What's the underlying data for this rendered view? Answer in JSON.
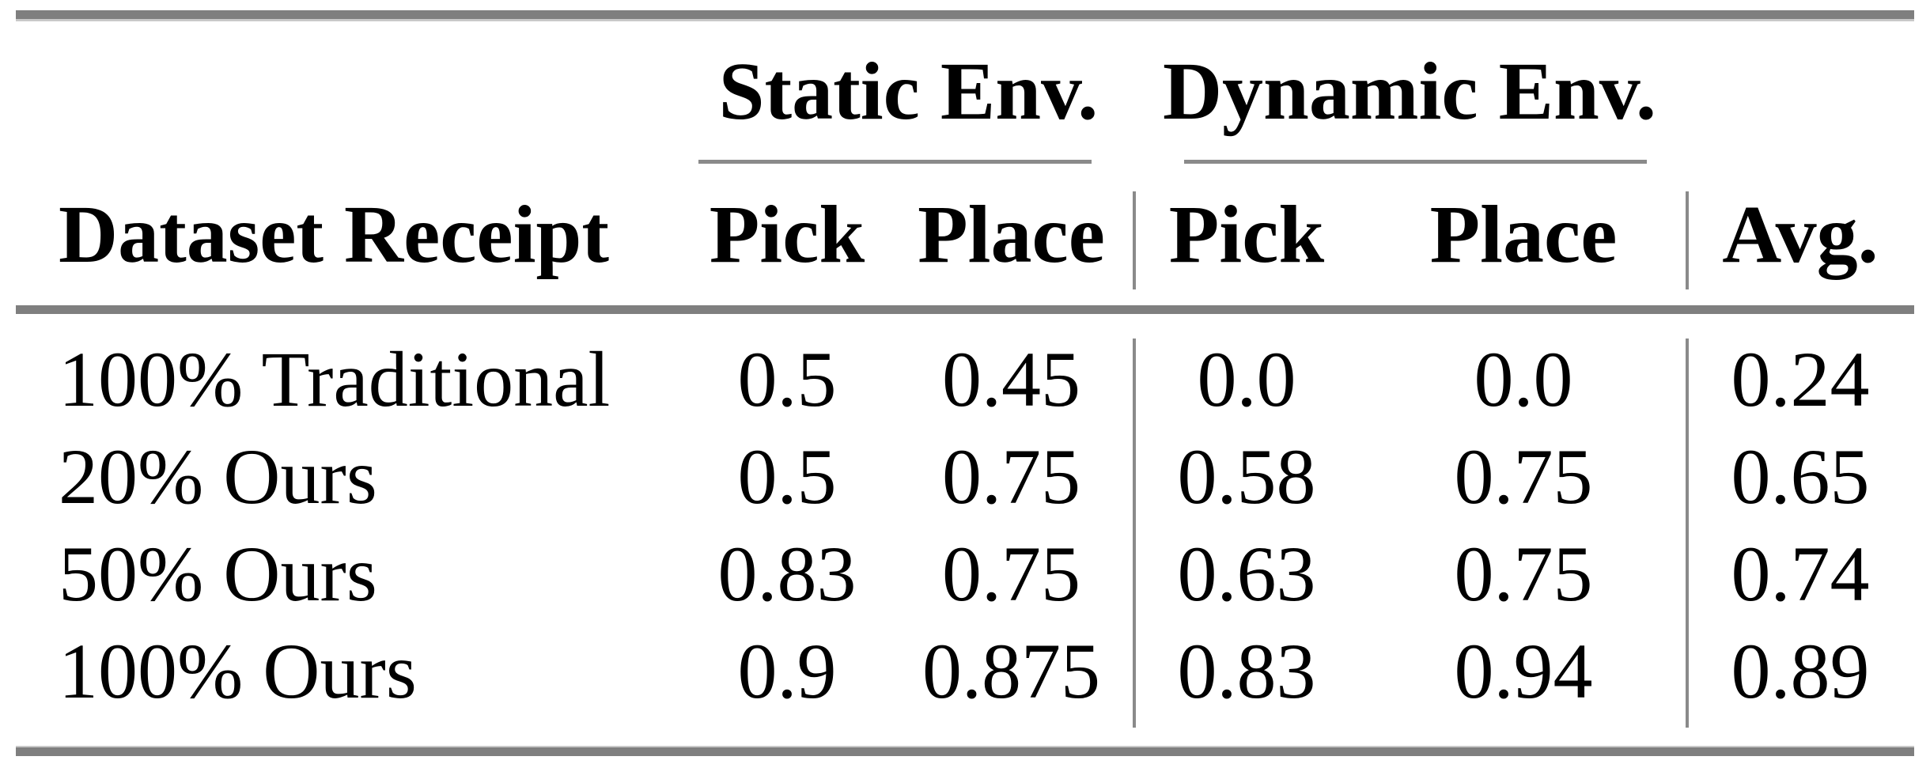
{
  "table": {
    "groups": [
      {
        "label": "Static Env."
      },
      {
        "label": "Dynamic Env."
      }
    ],
    "columns": [
      "Dataset Receipt",
      "Pick",
      "Place",
      "Pick",
      "Place",
      "Avg."
    ],
    "rows": [
      {
        "label": "100% Traditional",
        "values": [
          "0.5",
          "0.45",
          "0.0",
          "0.0",
          "0.24"
        ]
      },
      {
        "label": "20% Ours",
        "values": [
          "0.5",
          "0.75",
          "0.58",
          "0.75",
          "0.65"
        ]
      },
      {
        "label": "50% Ours",
        "values": [
          "0.83",
          "0.75",
          "0.63",
          "0.75",
          "0.74"
        ]
      },
      {
        "label": "100% Ours",
        "values": [
          "0.9",
          "0.875",
          "0.83",
          "0.94",
          "0.89"
        ]
      }
    ],
    "colors": {
      "rule_heavy": "#7f7f7f",
      "rule_light": "#8a8a8a",
      "text": "#000000",
      "background": "#ffffff"
    }
  }
}
